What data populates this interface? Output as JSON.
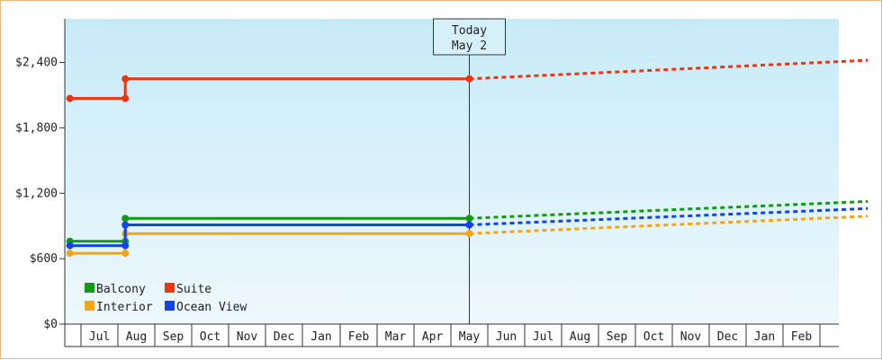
{
  "chart_data": {
    "type": "line",
    "ylim": [
      0,
      2800
    ],
    "y_ticks": [
      "$0",
      "$600",
      "$1,200",
      "$1,800",
      "$2,400"
    ],
    "y_tick_values": [
      0,
      600,
      1200,
      1800,
      2400
    ],
    "x_months": [
      "",
      "Jul",
      "Aug",
      "Sep",
      "Oct",
      "Nov",
      "Dec",
      "Jan",
      "Feb",
      "Mar",
      "Apr",
      "May",
      "Jun",
      "Jul",
      "Aug",
      "Sep",
      "Oct",
      "Nov",
      "Dec",
      "Jan",
      "Feb",
      ""
    ],
    "today_label": "Today",
    "today_date": "May 2",
    "today_index": 10.0,
    "grid": false,
    "legend_placement": "bottom-left",
    "series": [
      {
        "name": "Balcony",
        "color": "#119911",
        "history": [
          [
            -0.8,
            760
          ],
          [
            0.7,
            760
          ],
          [
            0.7,
            970
          ],
          [
            10.0,
            970
          ]
        ],
        "history_markers": [
          [
            -0.8,
            760
          ],
          [
            0.7,
            760
          ],
          [
            0.7,
            970
          ],
          [
            10.0,
            970
          ]
        ],
        "forecast": [
          [
            10.0,
            970
          ],
          [
            20.8,
            1125
          ]
        ]
      },
      {
        "name": "Suite",
        "color": "#ee3311",
        "history": [
          [
            -0.8,
            2070
          ],
          [
            0.7,
            2070
          ],
          [
            0.7,
            2250
          ],
          [
            10.0,
            2250
          ]
        ],
        "history_markers": [
          [
            -0.8,
            2070
          ],
          [
            0.7,
            2070
          ],
          [
            0.7,
            2250
          ],
          [
            10.0,
            2250
          ]
        ],
        "forecast": [
          [
            10.0,
            2250
          ],
          [
            20.8,
            2420
          ]
        ]
      },
      {
        "name": "Interior",
        "color": "#f4a511",
        "history": [
          [
            -0.8,
            650
          ],
          [
            0.7,
            650
          ],
          [
            0.7,
            830
          ],
          [
            10.0,
            830
          ]
        ],
        "history_markers": [
          [
            -0.8,
            650
          ],
          [
            0.7,
            650
          ],
          [
            0.7,
            830
          ],
          [
            10.0,
            830
          ]
        ],
        "forecast": [
          [
            10.0,
            830
          ],
          [
            20.8,
            990
          ]
        ]
      },
      {
        "name": "Ocean View",
        "color": "#1144ee",
        "history": [
          [
            -0.8,
            720
          ],
          [
            0.7,
            720
          ],
          [
            0.7,
            910
          ],
          [
            10.0,
            910
          ]
        ],
        "history_markers": [
          [
            -0.8,
            720
          ],
          [
            0.7,
            720
          ],
          [
            0.7,
            910
          ],
          [
            10.0,
            910
          ]
        ],
        "forecast": [
          [
            10.0,
            910
          ],
          [
            20.8,
            1060
          ]
        ]
      }
    ]
  }
}
